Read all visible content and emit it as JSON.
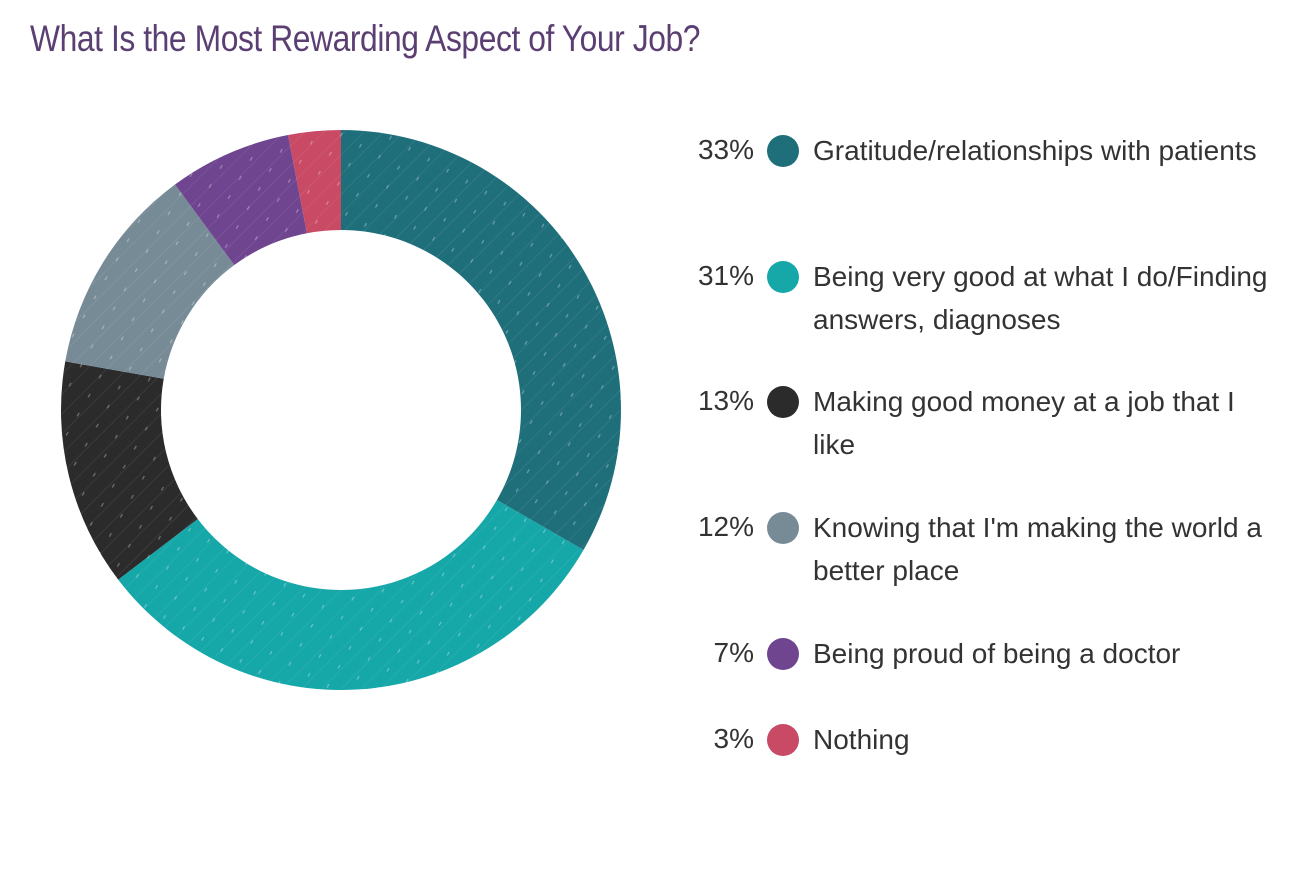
{
  "chart_data": {
    "type": "pie",
    "variant": "donut",
    "title": "What Is the Most Rewarding Aspect of Your Job?",
    "slices": [
      {
        "label": "Gratitude/relationships with patients",
        "value": 33,
        "value_label": "33%",
        "color": "#1f6f7b"
      },
      {
        "label": "Being very good at what I do/Finding answers, diagnoses",
        "value": 31,
        "value_label": "31%",
        "color": "#16a7a9"
      },
      {
        "label": "Making good money at a job that I like",
        "value": 13,
        "value_label": "13%",
        "color": "#2b2b2b"
      },
      {
        "label": "Knowing that I'm making the world a better place",
        "value": 12,
        "value_label": "12%",
        "color": "#778b97"
      },
      {
        "label": "Being proud of being a doctor",
        "value": 7,
        "value_label": "7%",
        "color": "#6f4590"
      },
      {
        "label": "Nothing",
        "value": 3,
        "value_label": "3%",
        "color": "#c94a65"
      }
    ],
    "legend_position": "right"
  }
}
